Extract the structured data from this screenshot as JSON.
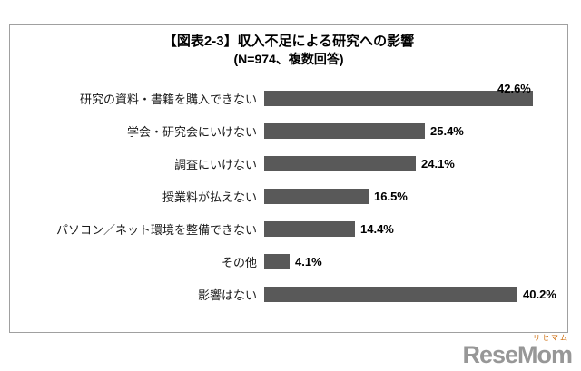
{
  "chart": {
    "title_line1": "【図表2-3】収入不足による研究への影響",
    "title_line2": "(N=974、複数回答)"
  },
  "chart_data": {
    "type": "bar",
    "orientation": "horizontal",
    "title": "【図表2-3】収入不足による研究への影響 (N=974、複数回答)",
    "categories": [
      "研究の資料・書籍を購入できない",
      "学会・研究会にいけない",
      "調査にいけない",
      "授業料が払えない",
      "パソコン／ネット環境を整備できない",
      "その他",
      "影響はない"
    ],
    "values": [
      42.6,
      25.4,
      24.1,
      16.5,
      14.4,
      4.1,
      40.2
    ],
    "value_suffix": "%",
    "bar_color": "#595959",
    "xlim": [
      0,
      45
    ],
    "grid": false,
    "legend": false
  },
  "footer": {
    "logo_text": "ReseMom",
    "logo_sub": "リセマム"
  }
}
